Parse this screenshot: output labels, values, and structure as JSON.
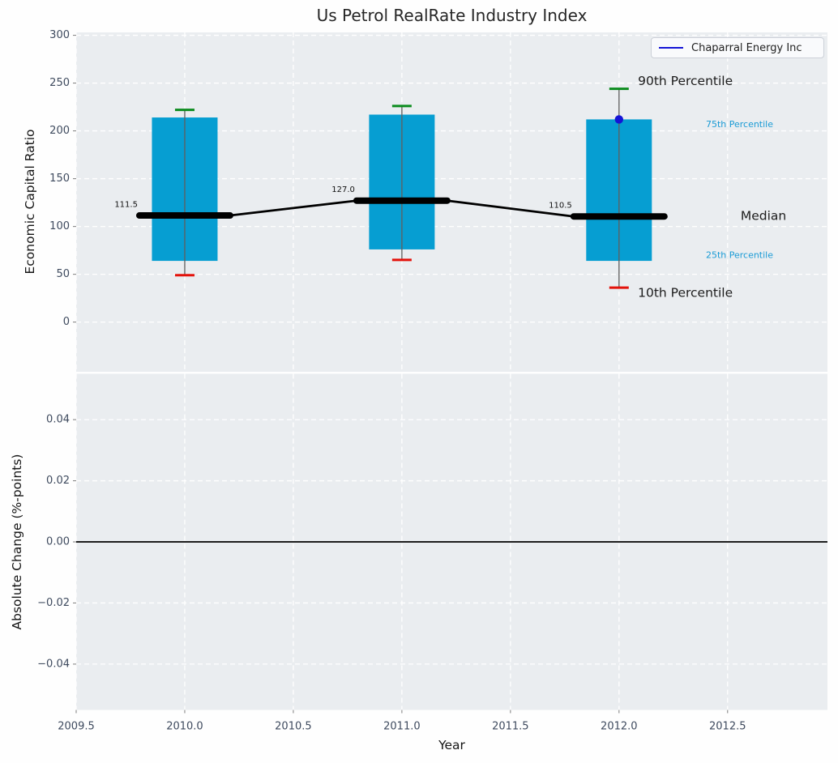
{
  "figure": {
    "title": "Us Petrol RealRate Industry Index"
  },
  "legend": {
    "label": "Chaparral Energy Inc",
    "line_color": "#1414d6"
  },
  "colors": {
    "axes_bg": "#eaedf0",
    "grid": "#ffffff",
    "box_fill": "#069ed2",
    "median_line": "#000000",
    "whisker": "#606060",
    "p90_cap": "#0c8c1e",
    "p10_cap": "#e3120b",
    "company_point": "#1414d6",
    "tick_label": "#3e4a5e",
    "tick_mark": "#888888",
    "annotation_text": "#1c1c1c",
    "percentile_text": "#1a9bd5",
    "zero_line": "#000000"
  },
  "chart_data": [
    {
      "type": "boxplot",
      "title": "Us Petrol RealRate Industry Index",
      "xlabel": "Year",
      "ylabel": "Economic Capital Ratio",
      "xlim": [
        2009.5,
        2012.96
      ],
      "ylim": [
        -52,
        303
      ],
      "yticks": [
        0,
        50,
        100,
        150,
        200,
        250,
        300
      ],
      "yticklabels": [
        "0",
        "50",
        "100",
        "150",
        "200",
        "250",
        "300"
      ],
      "grid": true,
      "legend_position": "upper right",
      "boxes": [
        {
          "year": 2010,
          "p10": 49,
          "q1": 64,
          "median": 111.5,
          "q3": 214,
          "p90": 222,
          "median_label": "111.5"
        },
        {
          "year": 2011,
          "p10": 65,
          "q1": 76,
          "median": 127.0,
          "q3": 217,
          "p90": 226,
          "median_label": "127.0"
        },
        {
          "year": 2012,
          "p10": 36,
          "q1": 64,
          "median": 110.5,
          "q3": 212,
          "p90": 244,
          "median_label": "110.5"
        }
      ],
      "series": [
        {
          "name": "Chaparral Energy Inc",
          "color": "#1414d6",
          "points": [
            {
              "x": 2012,
              "y": 212
            }
          ]
        }
      ],
      "annotations": [
        {
          "text": "90th Percentile",
          "x": 2012.087,
          "y": 252,
          "size": 15.5,
          "color": "#1c1c1c"
        },
        {
          "text": "75th Percentile",
          "x": 2012.4,
          "y": 207,
          "size": 11,
          "color": "#1a9bd5"
        },
        {
          "text": "Median",
          "x": 2012.56,
          "y": 111,
          "size": 15.5,
          "color": "#1c1c1c"
        },
        {
          "text": "25th Percentile",
          "x": 2012.4,
          "y": 70,
          "size": 11,
          "color": "#1a9bd5"
        },
        {
          "text": "10th Percentile",
          "x": 2012.087,
          "y": 30.5,
          "size": 15.5,
          "color": "#1c1c1c"
        }
      ]
    },
    {
      "type": "line",
      "xlabel": "Year",
      "ylabel": "Absolute Change (%-points)",
      "xlim": [
        2009.5,
        2012.96
      ],
      "ylim": [
        -0.055,
        0.055
      ],
      "xticks": [
        2009.5,
        2010.0,
        2010.5,
        2011.0,
        2011.5,
        2012.0,
        2012.5
      ],
      "xticklabels": [
        "2009.5",
        "2010.0",
        "2010.5",
        "2011.0",
        "2011.5",
        "2012.0",
        "2012.5"
      ],
      "yticks": [
        0.04,
        0.02,
        0.0,
        -0.02,
        -0.04
      ],
      "yticklabels": [
        "0.04",
        "0.02",
        "0.00",
        "−0.02",
        "−0.04"
      ],
      "grid": true,
      "zero_line": 0.0
    }
  ]
}
